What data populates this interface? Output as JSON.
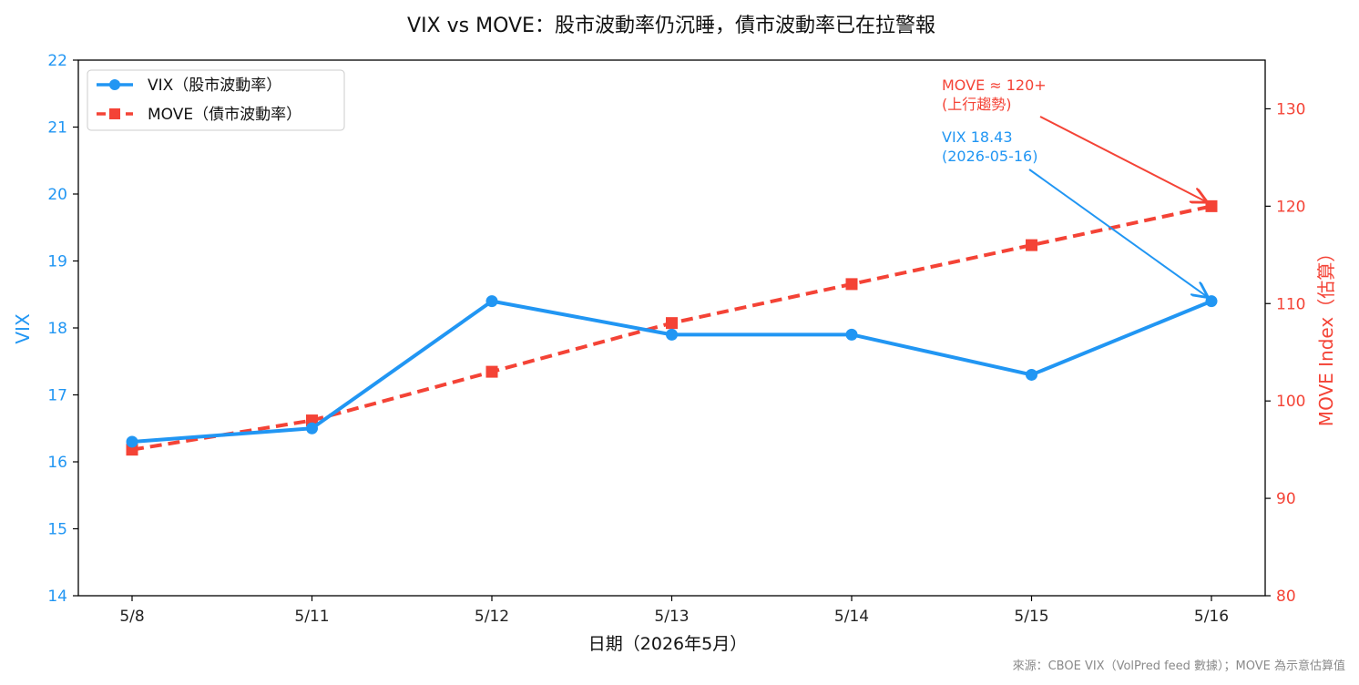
{
  "chart_data": {
    "type": "line",
    "title": "VIX vs MOVE：股市波動率仍沉睡，債市波動率已在拉警報",
    "xlabel": "日期（2026年5月）",
    "ylabel_left": "VIX",
    "ylabel_right": "MOVE Index（估算）",
    "categories": [
      "5/8",
      "5/11",
      "5/12",
      "5/13",
      "5/14",
      "5/15",
      "5/16"
    ],
    "ylim_left": [
      14,
      22
    ],
    "yticks_left": [
      "14",
      "15",
      "16",
      "17",
      "18",
      "19",
      "20",
      "21",
      "22"
    ],
    "ylim_right": [
      80,
      135
    ],
    "yticks_right": [
      "80",
      "90",
      "100",
      "110",
      "120",
      "130"
    ],
    "series": [
      {
        "name": "VIX（股市波動率）",
        "axis": "left",
        "color": "#2196f3",
        "style": "solid",
        "marker": "circle",
        "values": [
          16.3,
          16.5,
          18.4,
          17.9,
          17.9,
          17.3,
          18.4
        ]
      },
      {
        "name": "MOVE（債市波動率）",
        "axis": "right",
        "color": "#f44336",
        "style": "dashed",
        "marker": "square",
        "values": [
          95,
          98,
          103,
          108,
          112,
          116,
          120
        ]
      }
    ],
    "annotations": [
      {
        "series": 1,
        "index": 6,
        "lines": [
          "MOVE ≈ 120+",
          "(上行趨勢)"
        ],
        "color": "#f44336"
      },
      {
        "series": 0,
        "index": 6,
        "lines": [
          "VIX 18.43",
          "(2026-05-16)"
        ],
        "color": "#2196f3"
      }
    ],
    "legend_position": "top-left",
    "grid": false,
    "source_note": "來源：CBOE VIX（VolPred feed 數據）；MOVE 為示意估算值"
  }
}
